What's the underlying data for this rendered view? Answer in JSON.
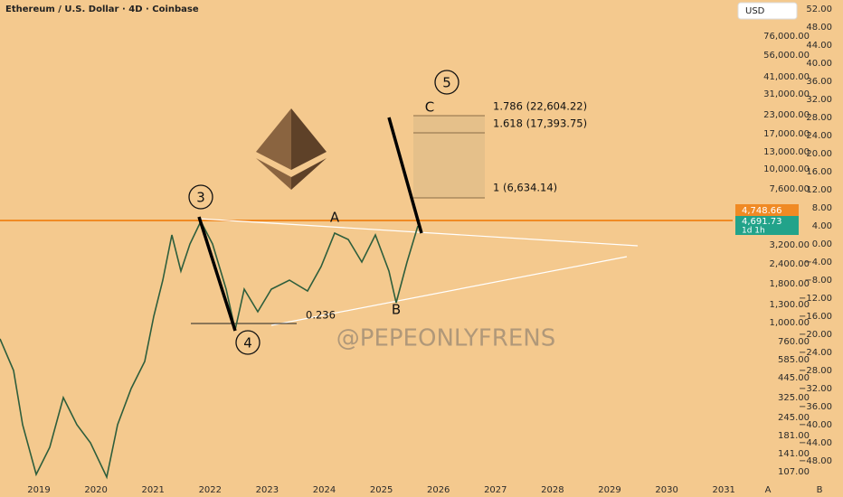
{
  "header": {
    "title": "Ethereum / U.S. Dollar · 4D · Coinbase",
    "currency": "USD"
  },
  "price_axis": [
    "76,000.00",
    "56,000.00",
    "41,000.00",
    "31,000.00",
    "23,000.00",
    "17,000.00",
    "13,000.00",
    "10,000.00",
    "7,600.00",
    "3,200.00",
    "2,400.00",
    "1,800.00",
    "1,300.00",
    "1,000.00",
    "760.00",
    "585.00",
    "445.00",
    "325.00",
    "245.00",
    "181.00",
    "141.00",
    "107.00"
  ],
  "price_tags": {
    "marker": "4,748.66",
    "last": "4,691.73",
    "countdown": "1d 1h"
  },
  "percent_axis": [
    "52.00",
    "48.00",
    "44.00",
    "40.00",
    "36.00",
    "32.00",
    "28.00",
    "24.00",
    "20.00",
    "16.00",
    "12.00",
    "8.00",
    "4.00",
    "0.00",
    "−4.00",
    "−8.00",
    "−12.00",
    "−16.00",
    "−20.00",
    "−24.00",
    "−28.00",
    "−32.00",
    "−36.00",
    "−40.00",
    "−44.00",
    "−48.00"
  ],
  "time_axis": [
    "2019",
    "2020",
    "2021",
    "2022",
    "2023",
    "2024",
    "2025",
    "2026",
    "2027",
    "2028",
    "2029",
    "2030",
    "2031"
  ],
  "axis_buttons": [
    "A",
    "B"
  ],
  "annotations": {
    "wave3": "3",
    "wave4": "4",
    "wave5": "5",
    "pointA": "A",
    "pointB": "B",
    "pointC": "C",
    "fib_236": "0.236",
    "fib_1786": "1.786 (22,604.22)",
    "fib_1618": "1.618 (17,393.75)",
    "fib_1": "1 (6,634.14)"
  },
  "watermark": "@PEPEONLYFRENS"
}
